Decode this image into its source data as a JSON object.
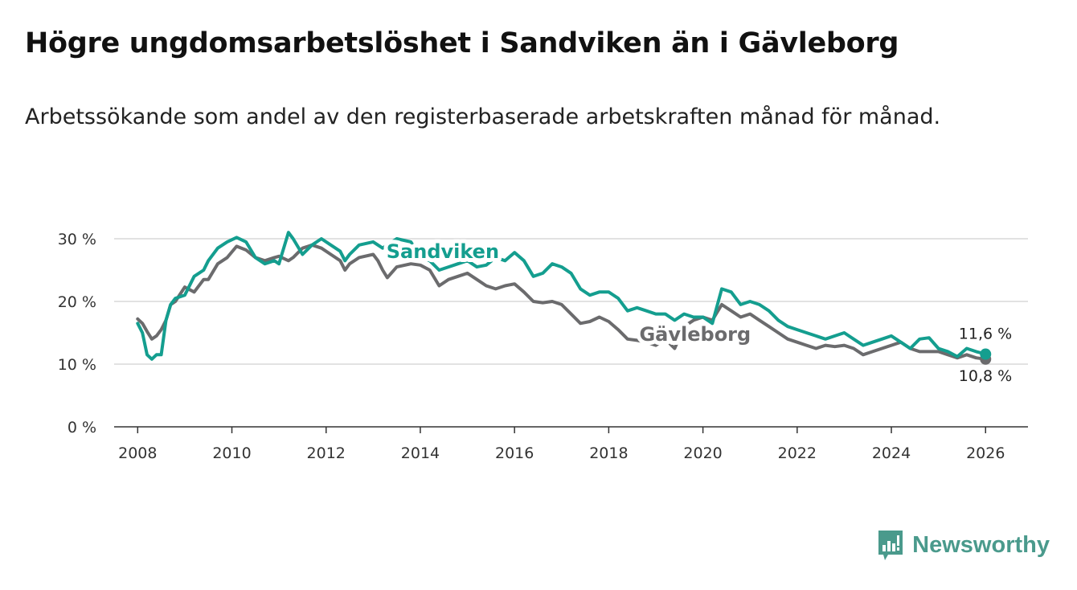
{
  "title": "Högre ungdomsarbetslöshet i Sandviken än i Gävleborg",
  "subtitle": "Arbetssökande som andel av den registerbaserade arbetskraften månad för månad.",
  "brand": {
    "name": "Newsworthy",
    "icon": "newsworthy-logo-icon",
    "color": "#4a9a8c"
  },
  "chart_data": {
    "type": "line",
    "title": "Högre ungdomsarbetslöshet i Sandviken än i Gävleborg",
    "xlabel": "",
    "ylabel": "",
    "xlim": [
      2007.5,
      2026.9
    ],
    "ylim": [
      0,
      30
    ],
    "y_ticks": [
      0,
      10,
      20,
      30
    ],
    "y_tick_labels": [
      "0 %",
      "10 %",
      "20 %",
      "30 %"
    ],
    "x_ticks": [
      2008,
      2010,
      2012,
      2014,
      2016,
      2018,
      2020,
      2022,
      2024,
      2026
    ],
    "x_tick_labels": [
      "2008",
      "2010",
      "2012",
      "2014",
      "2016",
      "2018",
      "2020",
      "2022",
      "2024",
      "2026"
    ],
    "grid": true,
    "series": [
      {
        "name": "Gävleborg",
        "color": "#6b6b6d",
        "end_label": "10,8 %",
        "x": [
          2008.0,
          2008.1,
          2008.2,
          2008.3,
          2008.4,
          2008.5,
          2008.6,
          2008.7,
          2008.8,
          2009.0,
          2009.2,
          2009.4,
          2009.5,
          2009.7,
          2009.9,
          2010.1,
          2010.3,
          2010.5,
          2010.7,
          2010.9,
          2011.0,
          2011.2,
          2011.3,
          2011.5,
          2011.7,
          2011.9,
          2012.1,
          2012.3,
          2012.4,
          2012.5,
          2012.7,
          2013.0,
          2013.1,
          2013.2,
          2013.3,
          2013.5,
          2013.8,
          2014.0,
          2014.2,
          2014.4,
          2014.6,
          2014.8,
          2015.0,
          2015.2,
          2015.4,
          2015.6,
          2015.8,
          2016.0,
          2016.2,
          2016.4,
          2016.6,
          2016.8,
          2017.0,
          2017.2,
          2017.4,
          2017.6,
          2017.8,
          2018.0,
          2018.2,
          2018.4,
          2018.6,
          2018.8,
          2019.0,
          2019.2,
          2019.4,
          2019.6,
          2019.8,
          2020.0,
          2020.2,
          2020.4,
          2020.6,
          2020.8,
          2021.0,
          2021.2,
          2021.4,
          2021.6,
          2021.8,
          2022.0,
          2022.2,
          2022.4,
          2022.6,
          2022.8,
          2023.0,
          2023.2,
          2023.4,
          2023.6,
          2023.8,
          2024.0,
          2024.2,
          2024.4,
          2024.6,
          2024.8,
          2025.0,
          2025.2,
          2025.4,
          2025.6,
          2025.8,
          2026.0
        ],
        "values": [
          17.2,
          16.5,
          15.2,
          14.0,
          14.5,
          15.5,
          17.0,
          19.5,
          20.0,
          22.3,
          21.5,
          23.5,
          23.5,
          26.0,
          27.0,
          28.8,
          28.2,
          27.0,
          26.5,
          27.0,
          27.2,
          26.5,
          27.0,
          28.5,
          29.0,
          28.5,
          27.5,
          26.5,
          25.0,
          26.0,
          27.0,
          27.5,
          26.5,
          25.0,
          23.8,
          25.5,
          26.0,
          25.8,
          25.0,
          22.5,
          23.5,
          24.0,
          24.5,
          23.5,
          22.5,
          22.0,
          22.5,
          22.8,
          21.5,
          20.0,
          19.8,
          20.0,
          19.5,
          18.0,
          16.5,
          16.8,
          17.5,
          16.8,
          15.5,
          14.0,
          13.8,
          13.5,
          13.0,
          14.0,
          12.5,
          16.0,
          17.0,
          17.5,
          17.0,
          19.5,
          18.5,
          17.5,
          18.0,
          17.0,
          16.0,
          15.0,
          14.0,
          13.5,
          13.0,
          12.5,
          13.0,
          12.8,
          13.0,
          12.5,
          11.5,
          12.0,
          12.5,
          13.0,
          13.5,
          12.5,
          12.0,
          12.0,
          12.0,
          11.5,
          11.0,
          11.5,
          11.0,
          10.8
        ]
      },
      {
        "name": "Sandviken",
        "color": "#149e8f",
        "end_label": "11,6 %",
        "x": [
          2008.0,
          2008.1,
          2008.2,
          2008.3,
          2008.4,
          2008.5,
          2008.6,
          2008.7,
          2008.8,
          2009.0,
          2009.2,
          2009.4,
          2009.5,
          2009.7,
          2009.9,
          2010.1,
          2010.3,
          2010.5,
          2010.7,
          2010.9,
          2011.0,
          2011.2,
          2011.3,
          2011.5,
          2011.7,
          2011.9,
          2012.1,
          2012.3,
          2012.4,
          2012.5,
          2012.7,
          2013.0,
          2013.1,
          2013.2,
          2013.3,
          2013.5,
          2013.8,
          2014.0,
          2014.2,
          2014.4,
          2014.6,
          2014.8,
          2015.0,
          2015.2,
          2015.4,
          2015.6,
          2015.8,
          2016.0,
          2016.2,
          2016.4,
          2016.6,
          2016.8,
          2017.0,
          2017.2,
          2017.4,
          2017.6,
          2017.8,
          2018.0,
          2018.2,
          2018.4,
          2018.6,
          2018.8,
          2019.0,
          2019.2,
          2019.4,
          2019.6,
          2019.8,
          2020.0,
          2020.2,
          2020.4,
          2020.6,
          2020.8,
          2021.0,
          2021.2,
          2021.4,
          2021.6,
          2021.8,
          2022.0,
          2022.2,
          2022.4,
          2022.6,
          2022.8,
          2023.0,
          2023.2,
          2023.4,
          2023.6,
          2023.8,
          2024.0,
          2024.2,
          2024.4,
          2024.6,
          2024.8,
          2025.0,
          2025.2,
          2025.4,
          2025.6,
          2025.8,
          2026.0
        ],
        "values": [
          16.5,
          15.0,
          11.5,
          10.8,
          11.5,
          11.5,
          17.0,
          19.5,
          20.5,
          21.0,
          24.0,
          25.0,
          26.5,
          28.5,
          29.5,
          30.2,
          29.5,
          27.0,
          26.0,
          26.5,
          26.0,
          31.0,
          30.0,
          27.5,
          29.0,
          30.0,
          29.0,
          28.0,
          26.5,
          27.5,
          29.0,
          29.5,
          29.0,
          28.5,
          29.0,
          30.0,
          29.5,
          27.0,
          26.5,
          25.0,
          25.5,
          26.0,
          26.5,
          25.5,
          25.8,
          27.0,
          26.5,
          27.8,
          26.5,
          24.0,
          24.5,
          26.0,
          25.5,
          24.5,
          22.0,
          21.0,
          21.5,
          21.5,
          20.5,
          18.5,
          19.0,
          18.5,
          18.0,
          18.0,
          17.0,
          18.0,
          17.5,
          17.5,
          16.5,
          22.0,
          21.5,
          19.5,
          20.0,
          19.5,
          18.5,
          17.0,
          16.0,
          15.5,
          15.0,
          14.5,
          14.0,
          14.5,
          15.0,
          14.0,
          13.0,
          13.5,
          14.0,
          14.5,
          13.5,
          12.5,
          14.0,
          14.2,
          12.5,
          12.0,
          11.2,
          12.5,
          12.0,
          11.6
        ]
      }
    ]
  }
}
